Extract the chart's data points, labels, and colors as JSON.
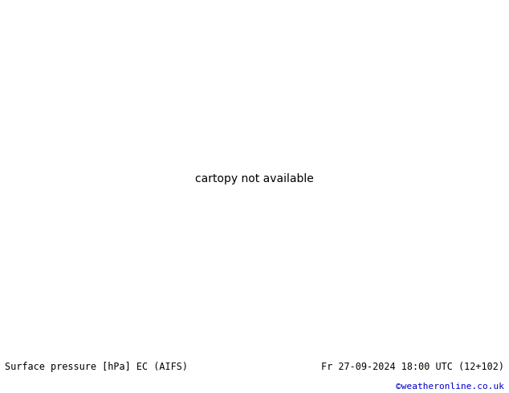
{
  "title_left": "Surface pressure [hPa] EC (AIFS)",
  "title_right": "Fr 27-09-2024 18:00 UTC (12+102)",
  "copyright": "©weatheronline.co.uk",
  "fig_width": 6.34,
  "fig_height": 4.9,
  "dpi": 100,
  "contour_color_low": "#0000ff",
  "contour_color_high": "#ff0000",
  "contour_color_1013": "#000000",
  "land_color": "#aad890",
  "ocean_color": "#e8e8ee",
  "map_edge_color": "#888888",
  "title_fontsize": 8.5,
  "copyright_color": "#0000cc",
  "copyright_fontsize": 8
}
